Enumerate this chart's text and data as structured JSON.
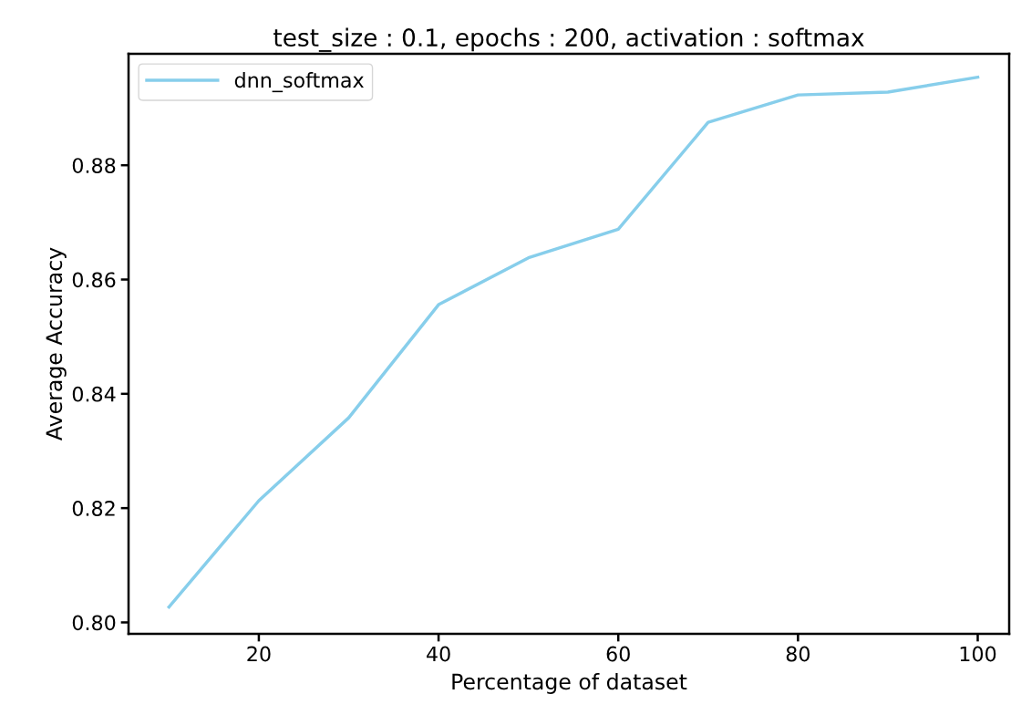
{
  "chart_data": {
    "type": "line",
    "title": "test_size : 0.1, epochs : 200, activation : softmax",
    "xlabel": "Percentage of dataset",
    "ylabel": "Average Accuracy",
    "x": [
      10,
      20,
      30,
      40,
      50,
      60,
      70,
      80,
      90,
      100
    ],
    "series": [
      {
        "name": "dnn_softmax",
        "color": "#87ceeb",
        "values": [
          0.8027,
          0.8213,
          0.8358,
          0.8556,
          0.8638,
          0.8688,
          0.8875,
          0.8923,
          0.8928,
          0.8954
        ]
      }
    ],
    "xlim": [
      5.5,
      103.5
    ],
    "xticks": [
      20,
      40,
      60,
      80,
      100
    ],
    "ylim": [
      0.798,
      0.8995
    ],
    "yticks": [
      {
        "value": 0.8,
        "label": "0.80"
      },
      {
        "value": 0.82,
        "label": "0.82"
      },
      {
        "value": 0.84,
        "label": "0.84"
      },
      {
        "value": 0.86,
        "label": "0.86"
      },
      {
        "value": 0.88,
        "label": "0.88"
      }
    ],
    "legend": "top left",
    "grid": false,
    "marker": "none",
    "line_style": "solid"
  }
}
